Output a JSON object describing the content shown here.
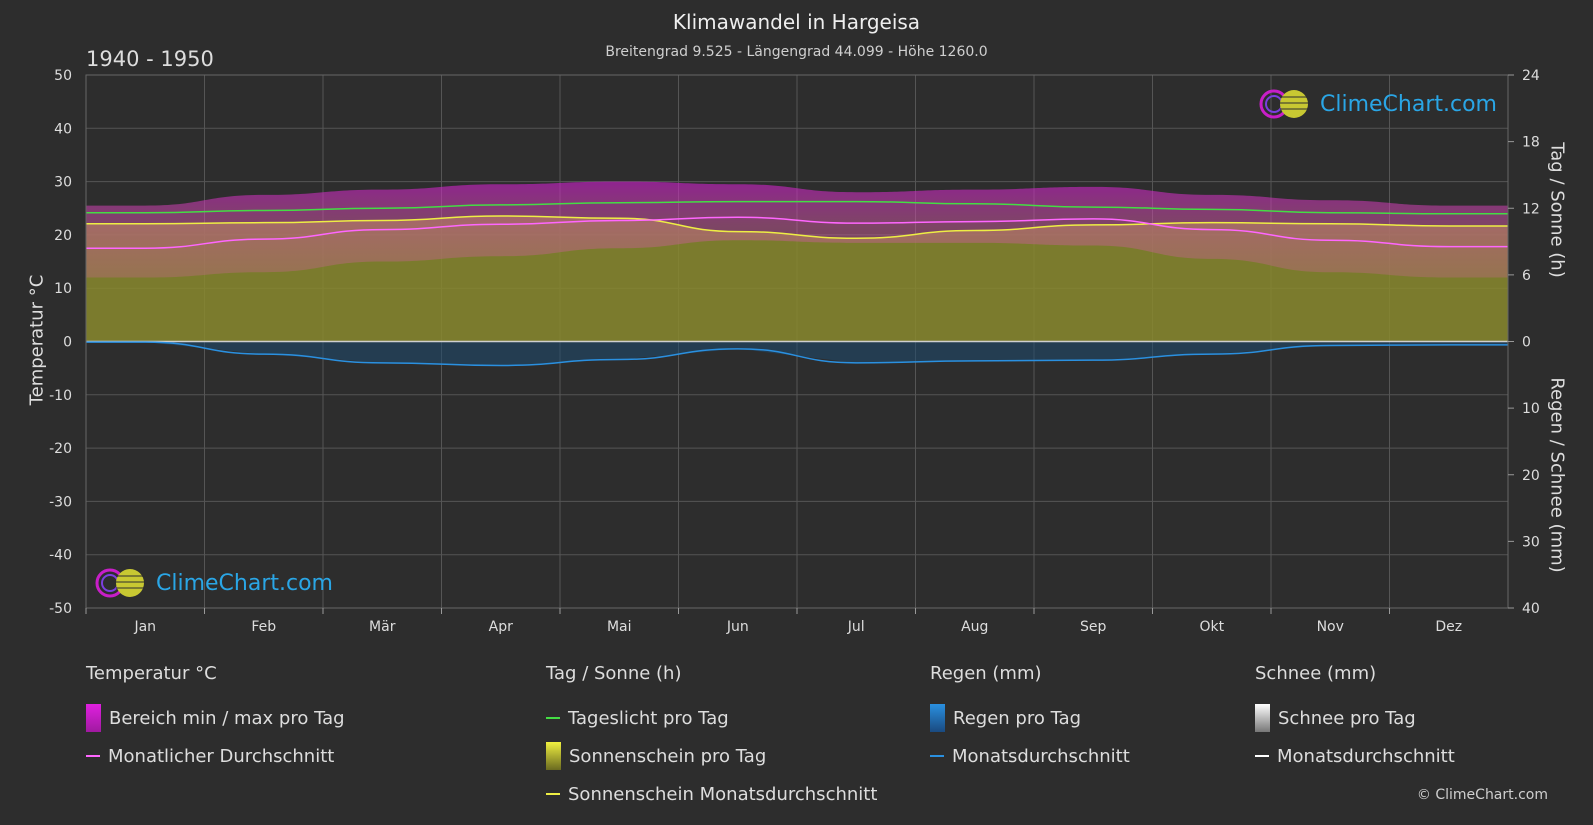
{
  "header": {
    "title": "Klimawandel in Hargeisa",
    "subtitle": "Breitengrad 9.525 - Längengrad 44.099 - Höhe 1260.0",
    "period": "1940 - 1950"
  },
  "axes": {
    "left_label": "Temperatur °C",
    "right_label_top": "Tag / Sonne (h)",
    "right_label_bottom": "Regen / Schnee (mm)"
  },
  "logo": {
    "text": "ClimeChart.com"
  },
  "copyright": "© ClimeChart.com",
  "legend": {
    "temp": {
      "head": "Temperatur °C",
      "range": "Bereich min / max pro Tag",
      "avg": "Monatlicher Durchschnitt"
    },
    "sun": {
      "head": "Tag / Sonne (h)",
      "daylight": "Tageslicht pro Tag",
      "sunshine": "Sonnenschein pro Tag",
      "sunavg": "Sonnenschein Monatsdurchschnitt"
    },
    "rain": {
      "head": "Regen (mm)",
      "perday": "Regen pro Tag",
      "avg": "Monatsdurchschnitt"
    },
    "snow": {
      "head": "Schnee (mm)",
      "perday": "Schnee pro Tag",
      "avg": "Monatsdurchschnitt"
    }
  },
  "colors": {
    "background": "#2d2d2d",
    "temp_range": "#c81ec8",
    "temp_avg": "#ff66ff",
    "daylight": "#44dd44",
    "sunshine_fill": "#8a8a2e",
    "sunshine_avg": "#eeee44",
    "rain": "#1e78c8",
    "snow": "#ffffff"
  },
  "chart_data": {
    "type": "line",
    "categories": [
      "Jan",
      "Feb",
      "Mär",
      "Apr",
      "Mai",
      "Jun",
      "Jul",
      "Aug",
      "Sep",
      "Okt",
      "Nov",
      "Dez"
    ],
    "y_left": {
      "range": [
        -50,
        50
      ],
      "ticks": [
        50,
        40,
        30,
        20,
        10,
        0,
        -10,
        -20,
        -30,
        -40,
        -50
      ]
    },
    "y_right_top": {
      "range": [
        0,
        24
      ],
      "ticks": [
        24,
        18,
        12,
        6,
        0
      ]
    },
    "y_right_bottom": {
      "range": [
        0,
        40
      ],
      "ticks": [
        0,
        10,
        20,
        30,
        40
      ]
    },
    "series": [
      {
        "name": "Tageslicht pro Tag",
        "axis": "hours",
        "values": [
          11.6,
          11.8,
          12.0,
          12.3,
          12.5,
          12.6,
          12.6,
          12.4,
          12.1,
          11.9,
          11.6,
          11.5
        ]
      },
      {
        "name": "Sonnenschein Monatsdurchschnitt",
        "axis": "hours",
        "values": [
          10.6,
          10.7,
          10.9,
          11.3,
          11.1,
          9.9,
          9.3,
          10.0,
          10.5,
          10.7,
          10.6,
          10.4
        ]
      },
      {
        "name": "Monatlicher Durchschnitt",
        "axis": "temp",
        "values": [
          17.5,
          19.2,
          21.0,
          22.0,
          22.7,
          23.3,
          22.2,
          22.5,
          23.0,
          21.0,
          19.0,
          17.8
        ]
      },
      {
        "name": "Bereich min / max pro Tag (max)",
        "axis": "temp",
        "values": [
          25.5,
          27.5,
          28.5,
          29.5,
          30.0,
          29.5,
          28.0,
          28.5,
          29.0,
          27.5,
          26.5,
          25.5
        ]
      },
      {
        "name": "Bereich min / max pro Tag (min)",
        "axis": "temp",
        "values": [
          12.0,
          13.0,
          15.0,
          16.0,
          17.5,
          19.0,
          18.5,
          18.5,
          18.0,
          15.5,
          13.0,
          12.0
        ]
      },
      {
        "name": "Regen Monatsdurchschnitt",
        "axis": "mm",
        "values": [
          0.1,
          1.9,
          3.2,
          3.6,
          2.7,
          1.1,
          3.2,
          2.9,
          2.8,
          1.9,
          0.6,
          0.5
        ]
      }
    ],
    "grid": true
  }
}
